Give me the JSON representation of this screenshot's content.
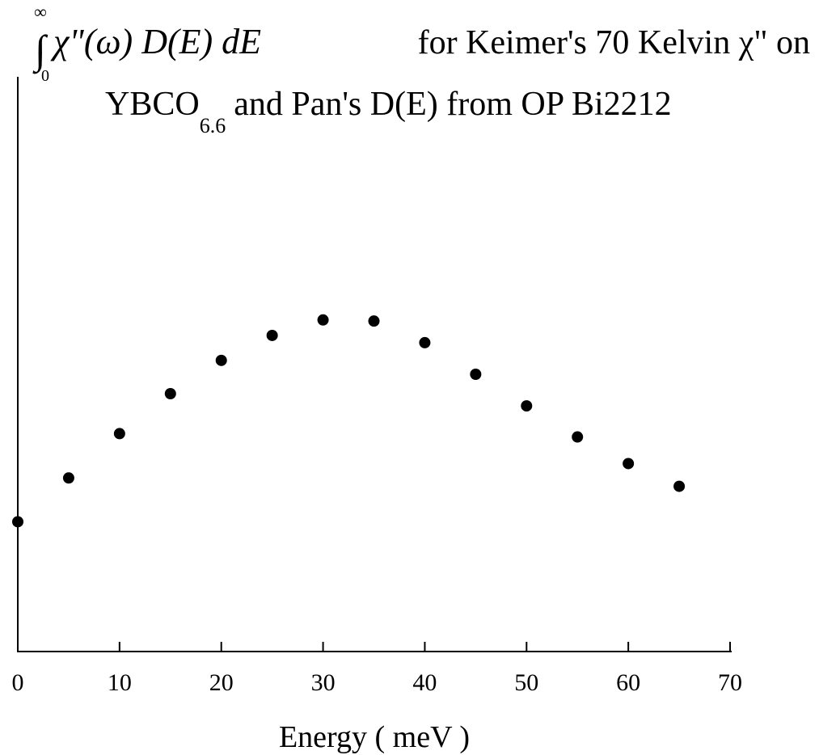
{
  "chart_data": {
    "type": "scatter",
    "title": {
      "integral_upper": "∞",
      "integral_sign": "∫",
      "integral_lower": "0",
      "expression": "χ\"(ω) D(E) dE",
      "line1_suffix": "for Keimer's 70 Kelvin χ\" on",
      "line2_prefix": "YBCO",
      "line2_subscript": "6.6",
      "line2_suffix": "and Pan's D(E) from OP Bi2212"
    },
    "xlabel": "Energy ( meV )",
    "ylabel": "",
    "xlim": [
      0,
      70
    ],
    "ylim": [
      0,
      1
    ],
    "xticks": [
      0,
      10,
      20,
      30,
      40,
      50,
      60,
      70
    ],
    "xtick_labels": [
      "0",
      "10",
      "20",
      "30",
      "40",
      "50",
      "60",
      "70"
    ],
    "y_ticks_shown": false,
    "grid": false,
    "legend": "none",
    "marker_color": "#000000",
    "series": [
      {
        "x": [
          0,
          5,
          10,
          15,
          20,
          25,
          30,
          35,
          40,
          45,
          50,
          55,
          60,
          65
        ],
        "y": [
          0.234,
          0.313,
          0.393,
          0.465,
          0.525,
          0.57,
          0.598,
          0.596,
          0.557,
          0.5,
          0.443,
          0.387,
          0.339,
          0.298
        ]
      }
    ]
  }
}
